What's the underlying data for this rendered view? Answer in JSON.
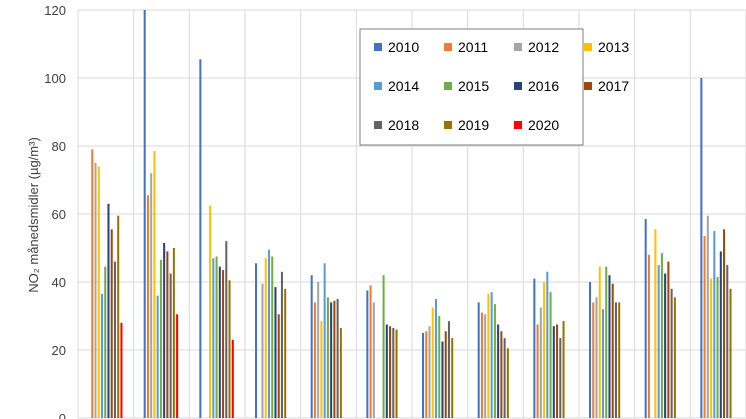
{
  "chart_data": {
    "type": "bar",
    "ylabel": "NO₂ månedsmidler (µg/m³)",
    "ylim": [
      0,
      120
    ],
    "yticks": [
      0,
      20,
      40,
      60,
      80,
      100,
      120
    ],
    "grid": true,
    "legend_position": "top-right",
    "months": 12,
    "series": [
      {
        "name": "2010",
        "color": "#4472C4",
        "values": [
          null,
          120,
          105.5,
          45.5,
          42,
          37.5,
          25,
          34,
          41,
          40,
          58.5,
          100
        ]
      },
      {
        "name": "2011",
        "color": "#ED7D31",
        "values": [
          79,
          65.5,
          null,
          null,
          34,
          39,
          25.5,
          31,
          27.5,
          34,
          48,
          53.5
        ]
      },
      {
        "name": "2012",
        "color": "#A5A5A5",
        "values": [
          75,
          72,
          null,
          39.5,
          40,
          34,
          27,
          30.5,
          32.5,
          35.5,
          null,
          59.5
        ]
      },
      {
        "name": "2013",
        "color": "#FFC000",
        "values": [
          74,
          78.5,
          62.5,
          47,
          28.5,
          null,
          32.5,
          36.5,
          40,
          44.5,
          55.5,
          41
        ]
      },
      {
        "name": "2014",
        "color": "#5B9BD5",
        "values": [
          36.5,
          36,
          47,
          49.5,
          45.5,
          null,
          35,
          37,
          43,
          32,
          45,
          55
        ]
      },
      {
        "name": "2015",
        "color": "#70AD47",
        "values": [
          44.5,
          46.5,
          47.5,
          47.5,
          35.5,
          42,
          30,
          33.5,
          37,
          44.5,
          48.5,
          41.5
        ]
      },
      {
        "name": "2016",
        "color": "#264478",
        "values": [
          63,
          51.5,
          44.5,
          38.5,
          34,
          27.5,
          22.5,
          27.5,
          27,
          42,
          42.5,
          49
        ]
      },
      {
        "name": "2017",
        "color": "#9E480E",
        "values": [
          55.5,
          49,
          43.5,
          30.5,
          34.5,
          27,
          25.5,
          25.5,
          27.5,
          39.5,
          46,
          55.5
        ]
      },
      {
        "name": "2018",
        "color": "#636363",
        "values": [
          46,
          42.5,
          52,
          43,
          35,
          26.5,
          28.5,
          23.5,
          23.5,
          34,
          38,
          45
        ]
      },
      {
        "name": "2019",
        "color": "#997300",
        "values": [
          59.5,
          50,
          40.5,
          38,
          26.5,
          26,
          23.5,
          20.5,
          28.5,
          34,
          35.5,
          38
        ]
      },
      {
        "name": "2020",
        "color": "#FF0000",
        "values": [
          28,
          30.5,
          23,
          null,
          null,
          null,
          null,
          null,
          null,
          null,
          null,
          null
        ]
      }
    ]
  }
}
